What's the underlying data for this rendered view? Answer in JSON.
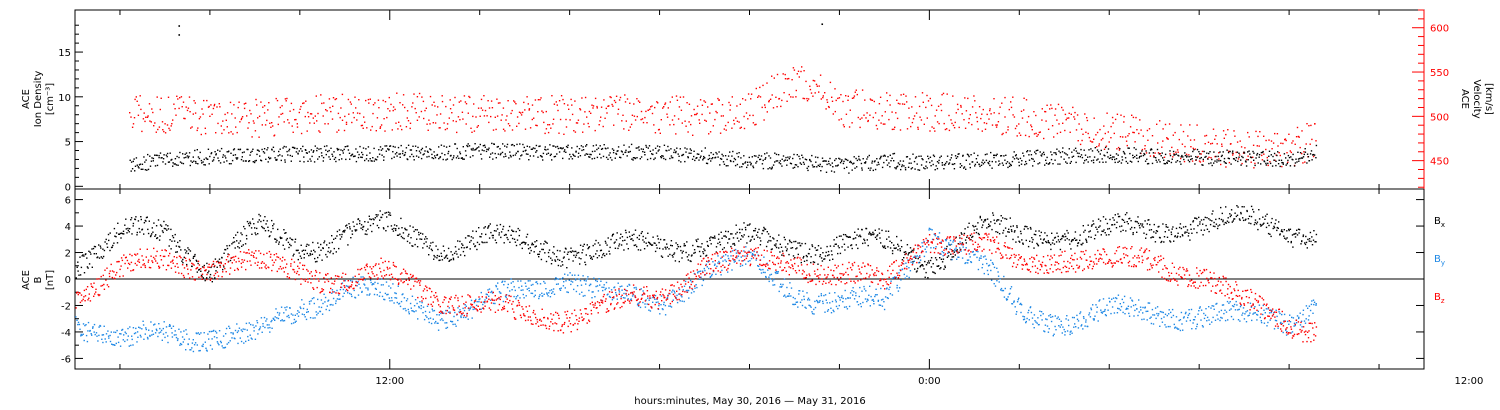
{
  "x_axis": {
    "title": "hours:minutes, May 30, 2016 — May 31, 2016",
    "range_hours": [
      -7,
      23
    ],
    "major_ticks": [
      {
        "hour": 0,
        "label": "12:00"
      },
      {
        "hour": 12,
        "label": "0:00"
      },
      {
        "hour": 24,
        "label": "12:00"
      }
    ],
    "minor_step_hours": 2
  },
  "top_panel": {
    "left_axis": {
      "label_lines": [
        "ACE",
        "Ion Density",
        "[cm⁻³]"
      ],
      "range": [
        -0.3,
        19.7
      ],
      "ticks": [
        0,
        5,
        10,
        15
      ],
      "color": "#000000"
    },
    "right_axis": {
      "label_lines": [
        "ACE",
        "Velocity",
        "[km/s]"
      ],
      "range": [
        418,
        620
      ],
      "ticks": [
        450,
        500,
        550,
        600
      ],
      "color": "#ff0000"
    }
  },
  "bottom_panel": {
    "axis": {
      "label_lines": [
        "ACE",
        "B",
        "[nT]"
      ],
      "range": [
        -6.8,
        6.8
      ],
      "ticks": [
        -6,
        -4,
        -2,
        0,
        2,
        4,
        6
      ]
    },
    "legend": [
      {
        "key": "bx",
        "text": "B",
        "sub": "x",
        "color": "#000000"
      },
      {
        "key": "by",
        "text": "B",
        "sub": "y",
        "color": "#1e88e5"
      },
      {
        "key": "bz",
        "text": "B",
        "sub": "z",
        "color": "#ff0000"
      }
    ]
  },
  "chart_data": [
    {
      "type": "scatter",
      "x_unit": "hours relative to 12:00 May 30, 2016",
      "series": [
        {
          "key": "density",
          "axis": "left",
          "color": "#000000",
          "x": [
            -5.8,
            -5,
            -4,
            -3,
            -2,
            -1,
            0,
            1,
            2,
            3,
            4,
            5,
            6,
            7,
            8,
            9,
            10,
            11,
            12,
            13,
            14,
            15,
            16,
            17,
            18,
            19,
            20,
            20.6
          ],
          "y": [
            2.5,
            3.0,
            3.4,
            3.6,
            3.7,
            3.7,
            3.8,
            3.9,
            4.0,
            3.9,
            3.8,
            3.9,
            3.8,
            3.5,
            3.0,
            2.8,
            2.3,
            2.9,
            2.7,
            2.9,
            3.1,
            3.5,
            3.6,
            3.4,
            3.3,
            3.2,
            3.1,
            3.8
          ],
          "outliers": [
            {
              "x": -4.7,
              "y": 18
            },
            {
              "x": -4.7,
              "y": 17
            },
            {
              "x": 9.6,
              "y": 18.2
            }
          ]
        },
        {
          "key": "velocity",
          "axis": "right",
          "color": "#ff0000",
          "x": [
            -5.8,
            -5,
            -4,
            -3,
            -2,
            -1,
            0,
            1,
            2,
            3,
            4,
            5,
            6,
            7,
            8,
            8.5,
            9,
            10,
            11,
            12,
            13,
            14,
            15,
            16,
            17,
            18,
            19,
            20,
            20.6
          ],
          "y": [
            505,
            502,
            500,
            498,
            502,
            505,
            506,
            505,
            504,
            503,
            502,
            505,
            503,
            500,
            508,
            525,
            545,
            510,
            508,
            505,
            505,
            500,
            493,
            484,
            476,
            469,
            463,
            462,
            478
          ]
        }
      ]
    },
    {
      "type": "scatter",
      "x_unit": "hours relative to 12:00 May 30, 2016",
      "series": [
        {
          "key": "bx",
          "color": "#000000",
          "x": [
            -7,
            -6,
            -5,
            -4,
            -3,
            -2,
            -1,
            0,
            1,
            2,
            3,
            4,
            5,
            6,
            7,
            8,
            9,
            10,
            11,
            12,
            13,
            14,
            15,
            16,
            17,
            18,
            19,
            20,
            20.6
          ],
          "y": [
            1.5,
            3.2,
            3.5,
            1.0,
            3.5,
            2.5,
            3.5,
            3.8,
            2.8,
            3.0,
            2.6,
            2.4,
            2.2,
            2.5,
            3.0,
            2.8,
            2.6,
            2.7,
            2.5,
            1.5,
            3.8,
            3.2,
            3.7,
            3.5,
            3.8,
            4.5,
            4.2,
            3.8,
            3.6
          ]
        },
        {
          "key": "by",
          "color": "#1e88e5",
          "x": [
            -7,
            -6,
            -5,
            -4,
            -3,
            -2,
            -1,
            0,
            1,
            2,
            3,
            4,
            5,
            6,
            7,
            8,
            9,
            10,
            11,
            12,
            13,
            14,
            15,
            16,
            17,
            18,
            19,
            20,
            20.6
          ],
          "y": [
            -3.0,
            -5.0,
            -4.0,
            -4.2,
            -4.5,
            -2.0,
            -0.5,
            -1.5,
            -2.5,
            -2.0,
            -1.0,
            0.5,
            -1.5,
            -2.0,
            1.0,
            1.2,
            -1.0,
            -1.5,
            -2.0,
            3.8,
            1.5,
            -2.5,
            -3.0,
            -2.5,
            -2.5,
            -2.5,
            -3.0,
            -3.0,
            -1.5
          ]
        },
        {
          "key": "bz",
          "color": "#ff0000",
          "x": [
            -7,
            -6,
            -5,
            -4,
            -3,
            -2,
            -1,
            0,
            1,
            2,
            3,
            4,
            5,
            6,
            7,
            8,
            9,
            10,
            11,
            12,
            13,
            14,
            15,
            16,
            17,
            18,
            19,
            20,
            20.6
          ],
          "y": [
            -1.0,
            0.5,
            1.5,
            1.2,
            1.0,
            0.8,
            0.0,
            0.2,
            -1.0,
            -2.0,
            -3.0,
            -2.5,
            -2.0,
            -1.5,
            1.5,
            1.0,
            1.5,
            0.5,
            -0.5,
            3.5,
            2.5,
            1.0,
            2.0,
            1.0,
            1.5,
            0.5,
            -2.0,
            -3.0,
            -3.5
          ]
        }
      ]
    }
  ]
}
